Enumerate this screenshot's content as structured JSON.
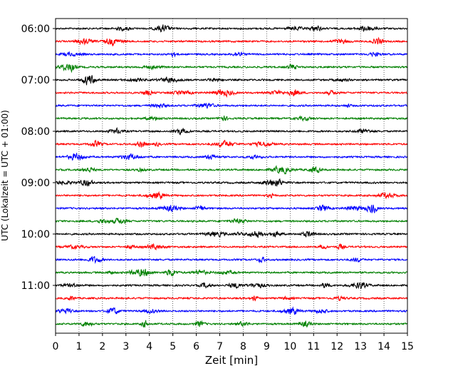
{
  "chart_data": {
    "type": "line",
    "title": "",
    "xlabel": "Zeit  [min]",
    "ylabel": "UTC (Lokalzeit = UTC + 01:00)",
    "xlim": [
      0,
      15
    ],
    "x_ticks": [
      "0",
      "1",
      "2",
      "3",
      "4",
      "5",
      "6",
      "7",
      "8",
      "9",
      "10",
      "11",
      "12",
      "13",
      "14",
      "15"
    ],
    "y_ticks": [
      {
        "label": "06:00",
        "trace": 0
      },
      {
        "label": "07:00",
        "trace": 4
      },
      {
        "label": "08:00",
        "trace": 8
      },
      {
        "label": "09:00",
        "trace": 12
      },
      {
        "label": "10:00",
        "trace": 16
      },
      {
        "label": "11:00",
        "trace": 20
      }
    ],
    "grid": {
      "vertical": true,
      "style": "dotted"
    },
    "trace_count": 24,
    "trace_interval_minutes": 15,
    "trace_colors": [
      "#000000",
      "#ff0000",
      "#0000ff",
      "#008000"
    ]
  }
}
